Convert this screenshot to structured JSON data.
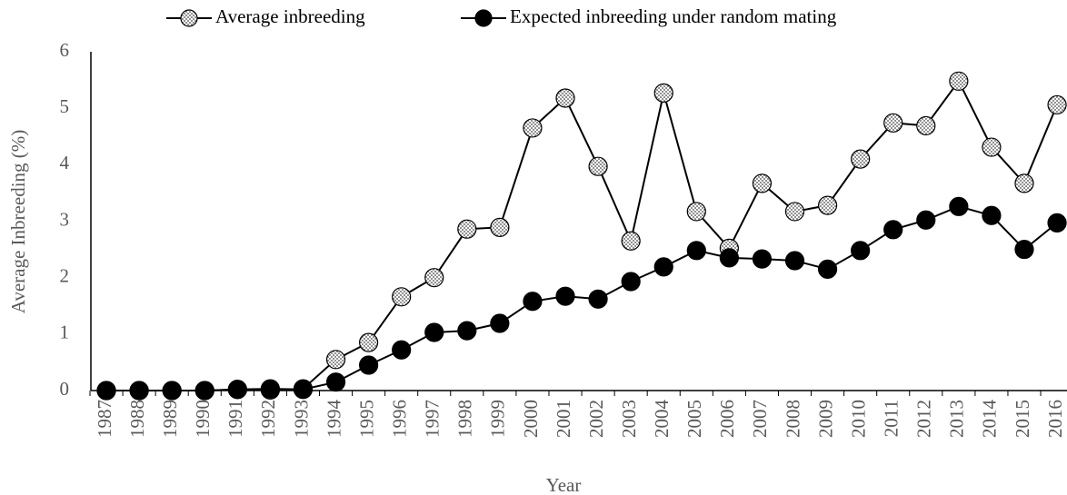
{
  "chart_data": {
    "type": "line",
    "y_label": "Average Inbreeding (%)",
    "x_label": "Year",
    "categories": [
      "1987",
      "1988",
      "1989",
      "1990",
      "1991",
      "1992",
      "1993",
      "1994",
      "1995",
      "1996",
      "1997",
      "1998",
      "1999",
      "2000",
      "2001",
      "2002",
      "2003",
      "2004",
      "2005",
      "2006",
      "2007",
      "2008",
      "2009",
      "2010",
      "2011",
      "2012",
      "2013",
      "2014",
      "2015",
      "2016"
    ],
    "series": [
      {
        "name": "Average inbreeding",
        "color": "#000000",
        "marker": "dotted",
        "values": [
          0,
          0,
          0,
          0,
          0.02,
          0.01,
          0.03,
          0.55,
          0.85,
          1.66,
          2.0,
          2.86,
          2.89,
          4.65,
          5.18,
          3.97,
          2.65,
          5.27,
          3.17,
          2.52,
          3.67,
          3.17,
          3.28,
          4.1,
          4.74,
          4.69,
          5.48,
          4.31,
          3.67,
          5.06
        ]
      },
      {
        "name": "Expected inbreeding under random mating",
        "color": "#000000",
        "marker": "filled",
        "values": [
          0,
          0,
          0,
          0,
          0.02,
          0.03,
          0.02,
          0.15,
          0.45,
          0.72,
          1.03,
          1.06,
          1.19,
          1.58,
          1.67,
          1.62,
          1.93,
          2.19,
          2.48,
          2.35,
          2.33,
          2.3,
          2.15,
          2.48,
          2.85,
          3.02,
          3.26,
          3.1,
          2.5,
          2.97
        ]
      }
    ],
    "ylim": [
      0,
      6
    ],
    "yticks": [
      0,
      1,
      2,
      3,
      4,
      5,
      6
    ],
    "grid": false
  }
}
